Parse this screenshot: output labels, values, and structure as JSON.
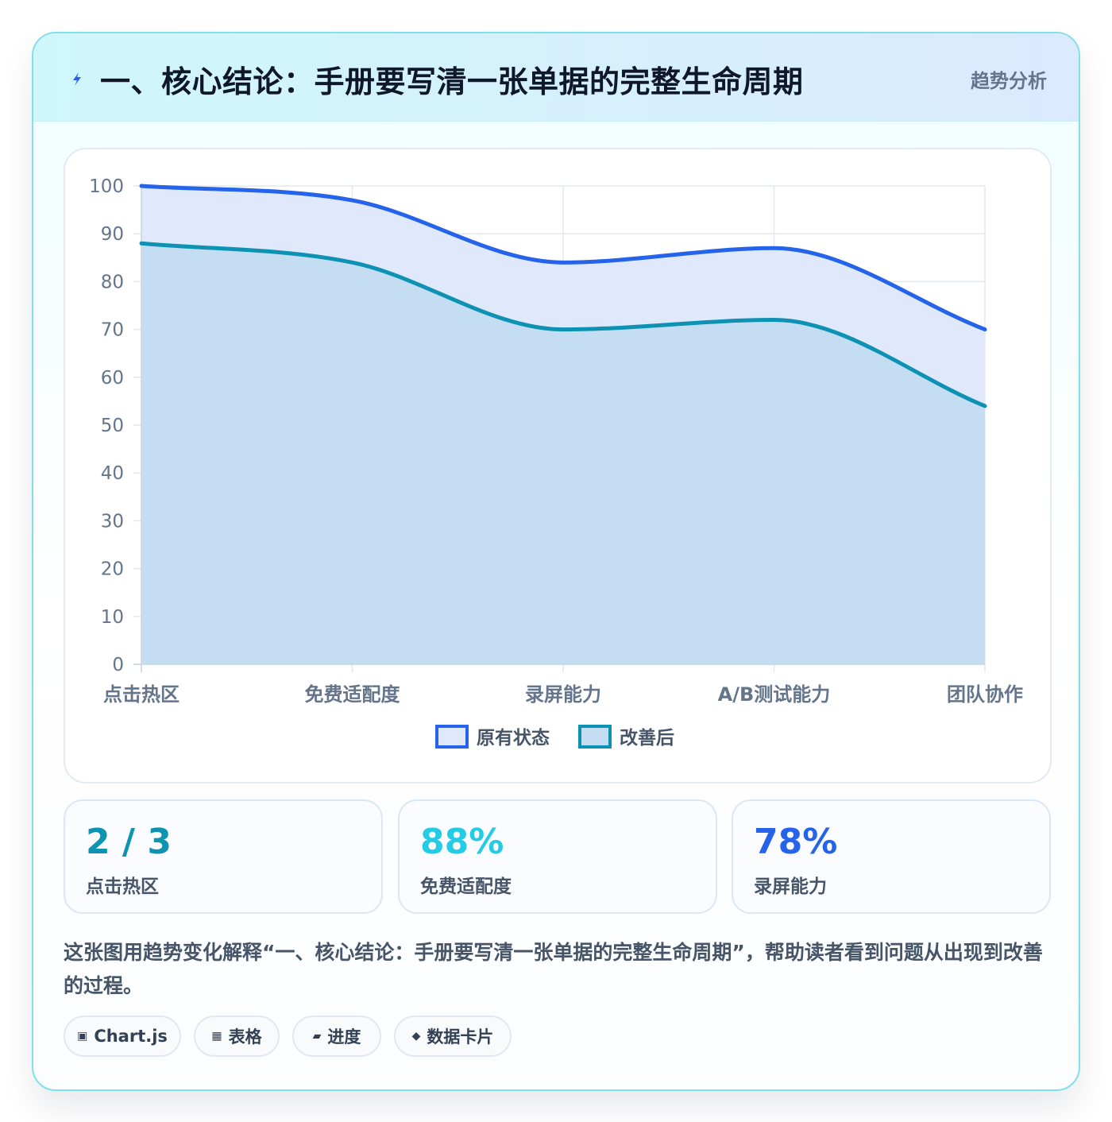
{
  "header": {
    "title": "一、核心结论：手册要写清一张单据的完整生命周期",
    "tag": "趋势分析",
    "icon": "lightning-icon"
  },
  "chart_data": {
    "type": "area",
    "categories": [
      "点击热区",
      "免费适配度",
      "录屏能力",
      "A/B测试能力",
      "团队协作"
    ],
    "series": [
      {
        "name": "原有状态",
        "values": [
          100,
          97,
          84,
          87,
          70
        ],
        "color": "#2563eb",
        "fill": "#e0e9fc"
      },
      {
        "name": "改善后",
        "values": [
          88,
          84,
          70,
          72,
          54
        ],
        "color": "#0e92b3",
        "fill": "#c5ddf2"
      }
    ],
    "ylim": [
      0,
      100
    ],
    "yticks": [
      0,
      10,
      20,
      30,
      40,
      50,
      60,
      70,
      80,
      90,
      100
    ],
    "grid": true,
    "legend_position": "bottom"
  },
  "stats": [
    {
      "value": "2 / 3",
      "label": "点击热区",
      "color": "#0e93b0"
    },
    {
      "value": "88%",
      "label": "免费适配度",
      "color": "#22cce4"
    },
    {
      "value": "78%",
      "label": "录屏能力",
      "color": "#2563eb"
    }
  ],
  "description": "这张图用趋势变化解释“一、核心结论：手册要写清一张单据的完整生命周期”，帮助读者看到问题从出现到改善的过程。",
  "chips": [
    {
      "icon": "▣",
      "label": "Chart.js"
    },
    {
      "icon": "▦",
      "label": "表格"
    },
    {
      "icon": "▰",
      "label": "进度"
    },
    {
      "icon": "◆",
      "label": "数据卡片"
    }
  ]
}
